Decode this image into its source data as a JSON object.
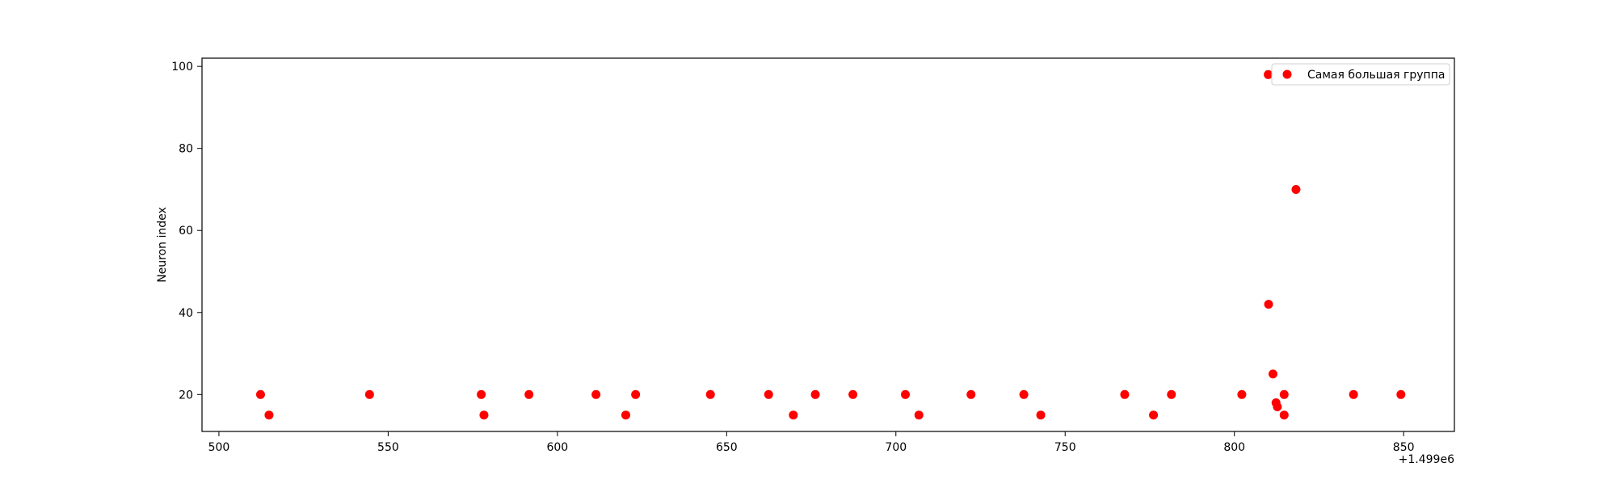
{
  "chart_data": {
    "type": "scatter",
    "title": "",
    "xlabel": "",
    "ylabel": "Neuron index",
    "x_offset_label": "+1.499e6",
    "xlim": [
      495,
      865
    ],
    "ylim": [
      11,
      102
    ],
    "x_ticks": [
      500,
      550,
      600,
      650,
      700,
      750,
      800,
      850
    ],
    "x_tick_labels": [
      "500",
      "550",
      "600",
      "650",
      "700",
      "750",
      "800",
      "850"
    ],
    "y_ticks": [
      20,
      40,
      60,
      80,
      100
    ],
    "y_tick_labels": [
      "20",
      "40",
      "60",
      "80",
      "100"
    ],
    "grid": false,
    "legend": {
      "position": "top-right",
      "entries": [
        "Самая большая группа"
      ]
    },
    "colors": {
      "series": "#ff0000",
      "axes": "#000000",
      "legend_border": "#d0d0d0"
    },
    "series": [
      {
        "name": "Самая большая группа",
        "points": [
          {
            "x": 512.3,
            "y": 20
          },
          {
            "x": 514.8,
            "y": 15
          },
          {
            "x": 544.5,
            "y": 20
          },
          {
            "x": 577.5,
            "y": 20
          },
          {
            "x": 578.3,
            "y": 15
          },
          {
            "x": 591.6,
            "y": 20
          },
          {
            "x": 611.4,
            "y": 20
          },
          {
            "x": 620.2,
            "y": 15
          },
          {
            "x": 623.1,
            "y": 20
          },
          {
            "x": 645.2,
            "y": 20
          },
          {
            "x": 662.4,
            "y": 20
          },
          {
            "x": 669.7,
            "y": 15
          },
          {
            "x": 676.2,
            "y": 20
          },
          {
            "x": 687.3,
            "y": 20
          },
          {
            "x": 702.8,
            "y": 20
          },
          {
            "x": 706.8,
            "y": 15
          },
          {
            "x": 722.2,
            "y": 20
          },
          {
            "x": 737.8,
            "y": 20
          },
          {
            "x": 742.8,
            "y": 15
          },
          {
            "x": 767.6,
            "y": 20
          },
          {
            "x": 776.1,
            "y": 15
          },
          {
            "x": 781.4,
            "y": 20
          },
          {
            "x": 802.2,
            "y": 20
          },
          {
            "x": 810.0,
            "y": 98
          },
          {
            "x": 810.1,
            "y": 42
          },
          {
            "x": 811.4,
            "y": 25
          },
          {
            "x": 812.3,
            "y": 18
          },
          {
            "x": 812.7,
            "y": 17
          },
          {
            "x": 814.7,
            "y": 15
          },
          {
            "x": 814.7,
            "y": 20
          },
          {
            "x": 818.2,
            "y": 70
          },
          {
            "x": 835.2,
            "y": 20
          },
          {
            "x": 849.2,
            "y": 20
          }
        ]
      }
    ]
  }
}
